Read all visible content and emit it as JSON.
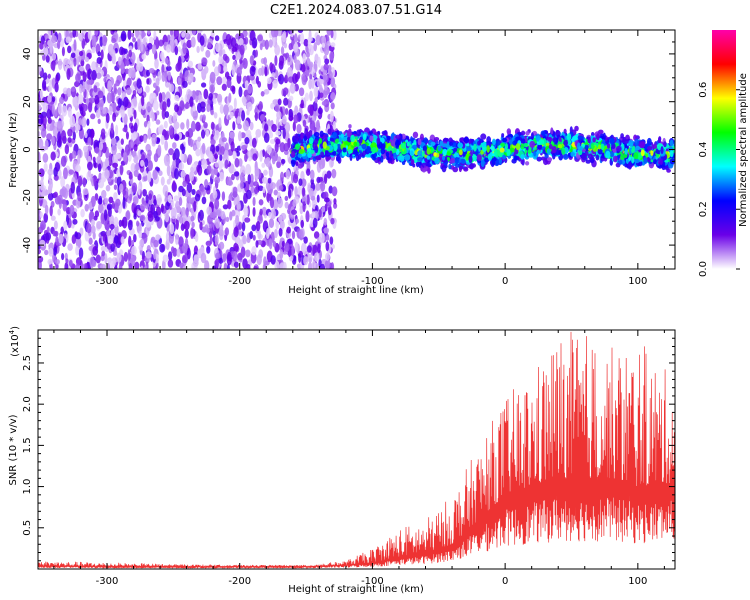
{
  "title": "C2E1.2024.083.07.51.G14",
  "chart_data": [
    {
      "type": "heatmap",
      "name": "spectrogram",
      "xlabel": "Height of straight line (km)",
      "ylabel": "Frequency (Hz)",
      "xlim": [
        -352,
        128
      ],
      "ylim": [
        -50,
        50
      ],
      "xticks": [
        -300,
        -200,
        -100,
        0,
        100
      ],
      "yticks": [
        -40,
        -20,
        0,
        20,
        40
      ],
      "colorbar": {
        "label": "Normalized spectral amplitude",
        "range": [
          0,
          0.8
        ],
        "ticks": [
          "0.0",
          "0.2",
          "0.4",
          "0.6"
        ],
        "tick_values": [
          0,
          0.2,
          0.4,
          0.6
        ],
        "colormap": [
          "#ffffff",
          "#6a00e8",
          "#0000ff",
          "#00ffff",
          "#00ff00",
          "#ffff00",
          "#ff0000",
          "#ff00aa"
        ]
      },
      "regions": [
        {
          "description": "broadband noise",
          "x_range": [
            -352,
            -128
          ],
          "freq_range": [
            -50,
            50
          ],
          "amplitude": [
            0.05,
            0.15
          ]
        },
        {
          "description": "signal band",
          "x_range": [
            -160,
            128
          ],
          "freq_center": 0,
          "freq_halfwidth": 8,
          "amplitude": [
            0.15,
            0.6
          ]
        }
      ],
      "grid": false
    },
    {
      "type": "line",
      "name": "snr",
      "xlabel": "Height of straight line (km)",
      "ylabel": "SNR (10 * v/v)",
      "y_scale_label": "(x10",
      "y_scale_exponent": "4",
      "y_scale_suffix": ")",
      "xlim": [
        -352,
        128
      ],
      "ylim": [
        0,
        2.9
      ],
      "xticks": [
        -300,
        -200,
        -100,
        0,
        100
      ],
      "yticks": [
        0.5,
        1.0,
        1.5,
        2.0,
        2.5
      ],
      "ytick_labels": [
        "0.5",
        "1.0",
        "1.5",
        "2.0",
        "2.5"
      ],
      "color": "#ee3333",
      "envelope": {
        "x": [
          -352,
          -300,
          -250,
          -200,
          -150,
          -120,
          -100,
          -80,
          -60,
          -40,
          -20,
          0,
          20,
          40,
          60,
          80,
          100,
          128
        ],
        "y_mean": [
          0.04,
          0.03,
          0.03,
          0.03,
          0.03,
          0.05,
          0.08,
          0.15,
          0.2,
          0.3,
          0.6,
          0.9,
          1.0,
          1.1,
          1.1,
          1.1,
          1.0,
          1.05
        ],
        "y_max": [
          0.1,
          0.08,
          0.06,
          0.05,
          0.05,
          0.1,
          0.25,
          0.5,
          0.6,
          0.9,
          1.5,
          2.1,
          2.4,
          2.9,
          2.9,
          2.7,
          2.8,
          2.3
        ]
      },
      "grid": false
    }
  ]
}
